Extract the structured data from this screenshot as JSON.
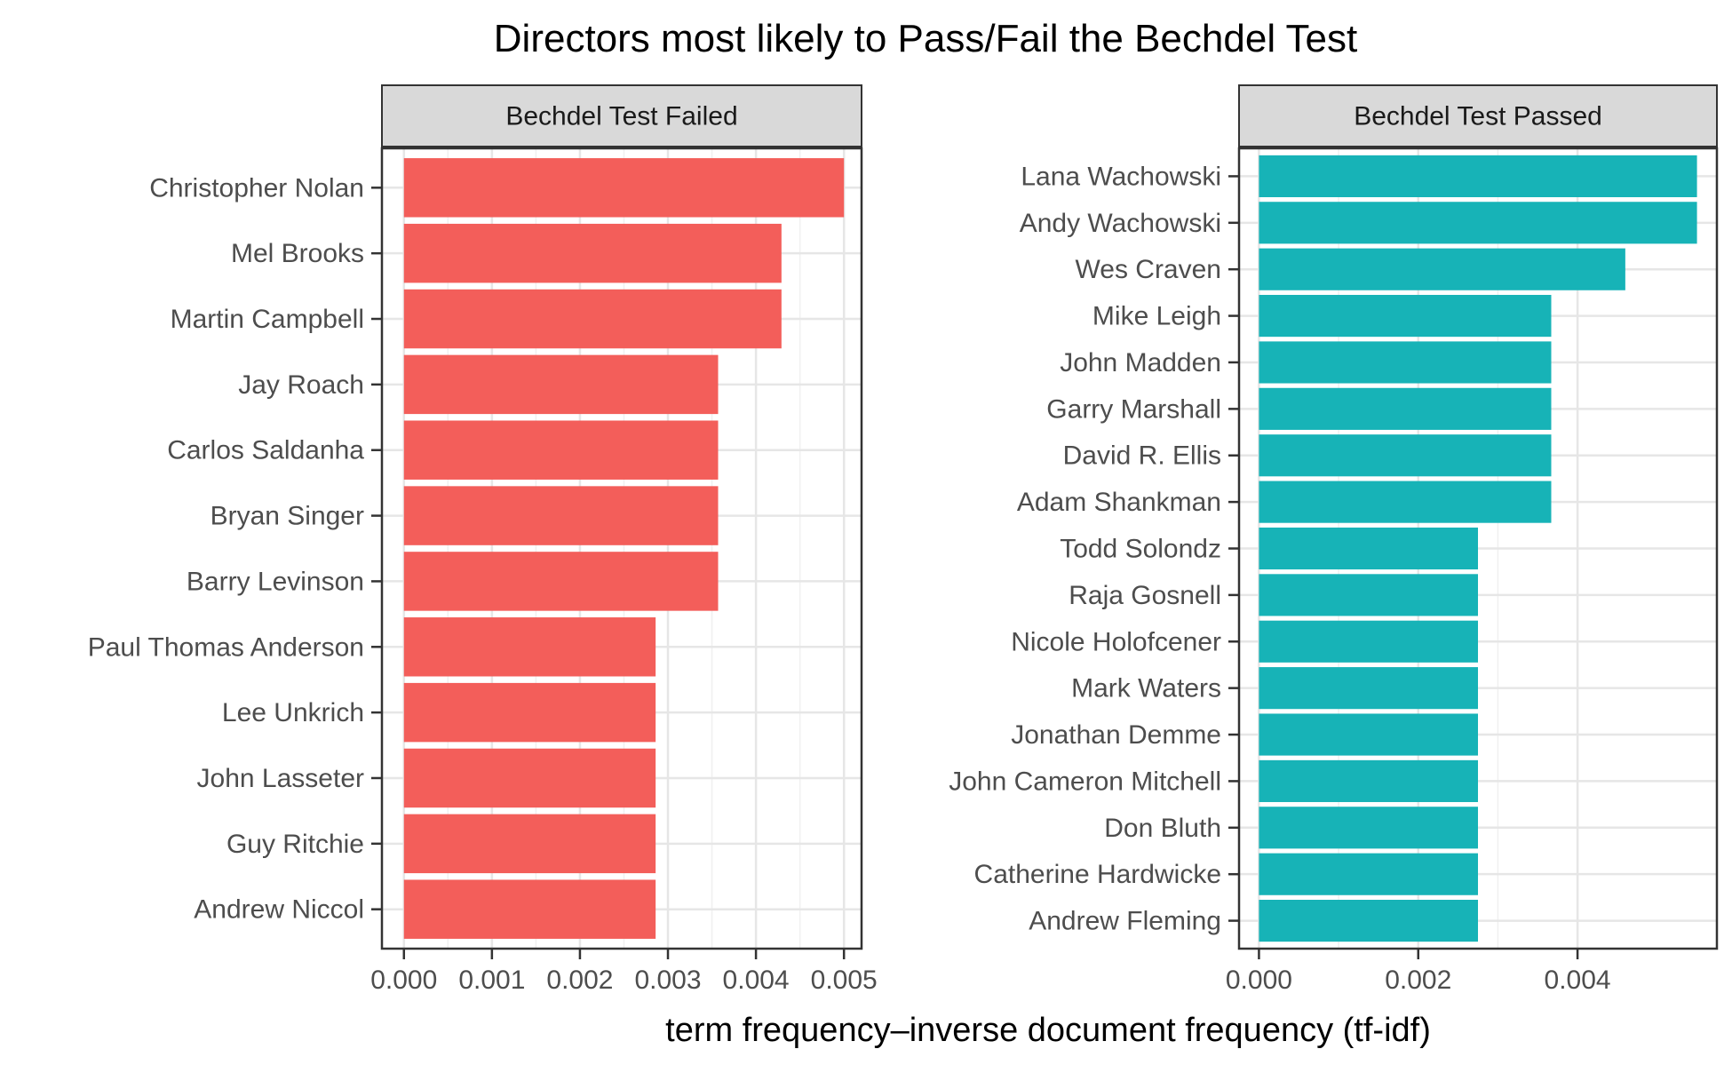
{
  "chart_data": {
    "type": "bar",
    "orientation": "horizontal",
    "title": "Directors most likely to Pass/Fail the Bechdel Test",
    "xlabel": "term frequency–inverse document frequency (tf-idf)",
    "ylabel": "",
    "grid": true,
    "legend": "none",
    "panels": [
      {
        "label": "Bechdel Test Failed",
        "color": "#F35E5A",
        "xlim": [
          -0.00025,
          0.0052
        ],
        "xticks": [
          0,
          0.001,
          0.002,
          0.003,
          0.004,
          0.005
        ],
        "xtick_labels": [
          "0.000",
          "0.001",
          "0.002",
          "0.003",
          "0.004",
          "0.005"
        ],
        "categories": [
          "Christopher Nolan",
          "Mel Brooks",
          "Martin Campbell",
          "Jay Roach",
          "Carlos Saldanha",
          "Bryan Singer",
          "Barry Levinson",
          "Paul Thomas Anderson",
          "Lee Unkrich",
          "John Lasseter",
          "Guy Ritchie",
          "Andrew Niccol"
        ],
        "values": [
          0.005,
          0.00429,
          0.00429,
          0.00357,
          0.00357,
          0.00357,
          0.00357,
          0.00286,
          0.00286,
          0.00286,
          0.00286,
          0.00286
        ]
      },
      {
        "label": "Bechdel Test Passed",
        "color": "#17B3B7",
        "xlim": [
          -0.00025,
          0.00575
        ],
        "xticks": [
          0,
          0.002,
          0.004
        ],
        "xtick_labels": [
          "0.000",
          "0.002",
          "0.004"
        ],
        "categories": [
          "Lana Wachowski",
          "Andy Wachowski",
          "Wes Craven",
          "Mike Leigh",
          "John Madden",
          "Garry Marshall",
          "David R. Ellis",
          "Adam Shankman",
          "Todd Solondz",
          "Raja Gosnell",
          "Nicole Holofcener",
          "Mark Waters",
          "Jonathan Demme",
          "John Cameron Mitchell",
          "Don Bluth",
          "Catherine Hardwicke",
          "Andrew Fleming"
        ],
        "values": [
          0.0055,
          0.0055,
          0.0046,
          0.00367,
          0.00367,
          0.00367,
          0.00367,
          0.00367,
          0.00275,
          0.00275,
          0.00275,
          0.00275,
          0.00275,
          0.00275,
          0.00275,
          0.00275,
          0.00275
        ]
      }
    ]
  }
}
